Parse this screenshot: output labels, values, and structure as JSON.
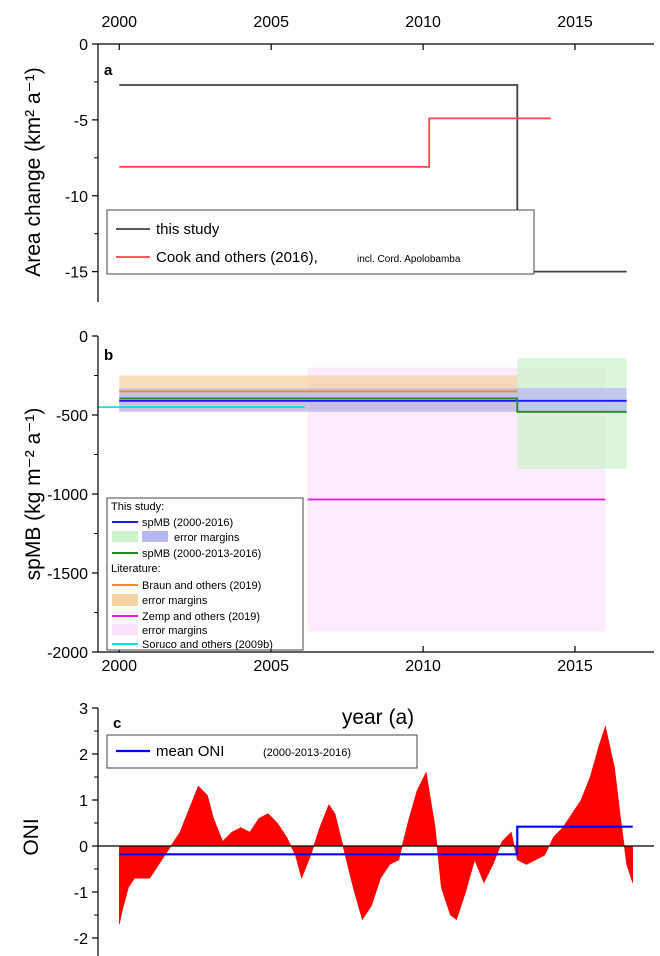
{
  "chart_data": [
    {
      "panel": "a",
      "type": "line",
      "ylabel": "Area change (km² a⁻¹)",
      "xlim": [
        1999.3,
        2017.6
      ],
      "ylim": [
        -17,
        0
      ],
      "x_ticks_top": [
        "2000",
        "2005",
        "2010",
        "2015"
      ],
      "y_ticks": [
        "0",
        "-5",
        "-10",
        "-15"
      ],
      "series": [
        {
          "name": "this study",
          "color": "#404040",
          "x": [
            2000,
            2013.1,
            2013.1,
            2016.7
          ],
          "y": [
            -2.7,
            -2.7,
            -15.0,
            -15.0
          ]
        },
        {
          "name": "Cook and others (2016),",
          "note": "incl. Cord. Apolobamba",
          "color": "#ff4444",
          "x": [
            2000,
            2010.2,
            2010.2,
            2014.2
          ],
          "y": [
            -8.1,
            -8.1,
            -4.9,
            -4.9
          ]
        }
      ]
    },
    {
      "panel": "b",
      "type": "line",
      "ylabel": "spMB (kg m⁻² a⁻¹)",
      "xlabel": "year (a)",
      "xlim": [
        1999.3,
        2017.6
      ],
      "ylim": [
        -2000,
        0
      ],
      "x_ticks": [
        "2000",
        "2005",
        "2010",
        "2015"
      ],
      "y_ticks": [
        "0",
        "-500",
        "-1000",
        "-1500",
        "-2000"
      ],
      "legend_headers": [
        "This study:",
        "Literature:"
      ],
      "series": [
        {
          "name": "spMB (2000-2016)",
          "color": "#1a1aee",
          "x": [
            2000,
            2016.7
          ],
          "y": [
            -410,
            -410
          ]
        },
        {
          "name": "spMB (2000-2013-2016)",
          "color": "#228b22",
          "x": [
            2000,
            2013.1,
            2013.1,
            2016.7
          ],
          "y": [
            -395,
            -395,
            -480,
            -480
          ]
        },
        {
          "name": "Braun and others (2019)",
          "color": "#e8922a",
          "x": [
            2000,
            2013.1
          ],
          "y": [
            -350,
            -350
          ]
        },
        {
          "name": "Zemp and others (2019)",
          "color": "#e817e8",
          "x": [
            2006.2,
            2016
          ],
          "y": [
            -1035,
            -1035
          ]
        },
        {
          "name": "Soruco and others (2009b)",
          "color": "#00e5e5",
          "x": [
            1999.3,
            2006.1
          ],
          "y": [
            -450,
            -450
          ]
        }
      ],
      "error_bands": [
        {
          "for": "spMB (2000-2016)",
          "label": "error margins",
          "color": "#b8b8f0",
          "x": [
            2000,
            2016.7
          ],
          "y_range": [
            -480,
            -330
          ]
        },
        {
          "for": "spMB (2000-2013-2016)",
          "label": "error margins",
          "color": "#cdf2cd",
          "x": [
            2013.1,
            2016.7
          ],
          "y_range": [
            -840,
            -140
          ]
        },
        {
          "for": "Braun and others (2019)",
          "label": "error margins",
          "color": "#f6d3a3",
          "x": [
            2000,
            2013.1
          ],
          "y_range": [
            -470,
            -250
          ]
        },
        {
          "for": "Zemp and others (2019)",
          "label": "error margins",
          "color": "#fbe4fb",
          "x": [
            2006.2,
            2016
          ],
          "y_range": [
            -1870,
            -200
          ]
        }
      ]
    },
    {
      "panel": "c",
      "type": "area",
      "ylabel": "ONI",
      "xlim": [
        1999.3,
        2017.6
      ],
      "ylim": [
        -2.4,
        3
      ],
      "y_ticks": [
        "3",
        "2",
        "1",
        "0",
        "-1",
        "-2"
      ],
      "oni_series": {
        "name": "ONI",
        "color": "#ff0000",
        "x": [
          2000.0,
          2000.1,
          2000.3,
          2000.5,
          2000.8,
          2001.0,
          2001.3,
          2001.6,
          2002.0,
          2002.3,
          2002.6,
          2002.9,
          2003.1,
          2003.4,
          2003.7,
          2004.0,
          2004.3,
          2004.6,
          2004.9,
          2005.2,
          2005.5,
          2005.8,
          2006.0,
          2006.3,
          2006.6,
          2006.9,
          2007.1,
          2007.4,
          2007.7,
          2008.0,
          2008.3,
          2008.6,
          2008.9,
          2009.2,
          2009.5,
          2009.8,
          2010.1,
          2010.4,
          2010.6,
          2010.9,
          2011.1,
          2011.4,
          2011.7,
          2012.0,
          2012.3,
          2012.6,
          2012.9,
          2013.1,
          2013.4,
          2013.7,
          2014.0,
          2014.3,
          2014.6,
          2014.9,
          2015.2,
          2015.5,
          2015.8,
          2016.0,
          2016.3,
          2016.5,
          2016.7,
          2016.9
        ],
        "y": [
          -1.7,
          -1.4,
          -0.9,
          -0.7,
          -0.7,
          -0.7,
          -0.4,
          -0.1,
          0.3,
          0.8,
          1.3,
          1.1,
          0.6,
          0.1,
          0.3,
          0.4,
          0.3,
          0.6,
          0.7,
          0.5,
          0.2,
          -0.2,
          -0.7,
          -0.2,
          0.4,
          0.9,
          0.7,
          -0.1,
          -0.9,
          -1.6,
          -1.3,
          -0.7,
          -0.4,
          -0.3,
          0.5,
          1.2,
          1.6,
          0.4,
          -0.9,
          -1.5,
          -1.6,
          -1.0,
          -0.3,
          -0.8,
          -0.4,
          0.1,
          0.3,
          -0.3,
          -0.4,
          -0.3,
          -0.2,
          0.2,
          0.4,
          0.7,
          1.0,
          1.5,
          2.2,
          2.6,
          1.7,
          0.6,
          -0.4,
          -0.8
        ]
      },
      "series": [
        {
          "name": "mean ONI",
          "note": "(2000-2013-2016)",
          "color": "#0000ff",
          "x": [
            2000,
            2013.1,
            2013.1,
            2016.9
          ],
          "y": [
            -0.18,
            -0.18,
            0.42,
            0.42
          ]
        }
      ]
    }
  ]
}
